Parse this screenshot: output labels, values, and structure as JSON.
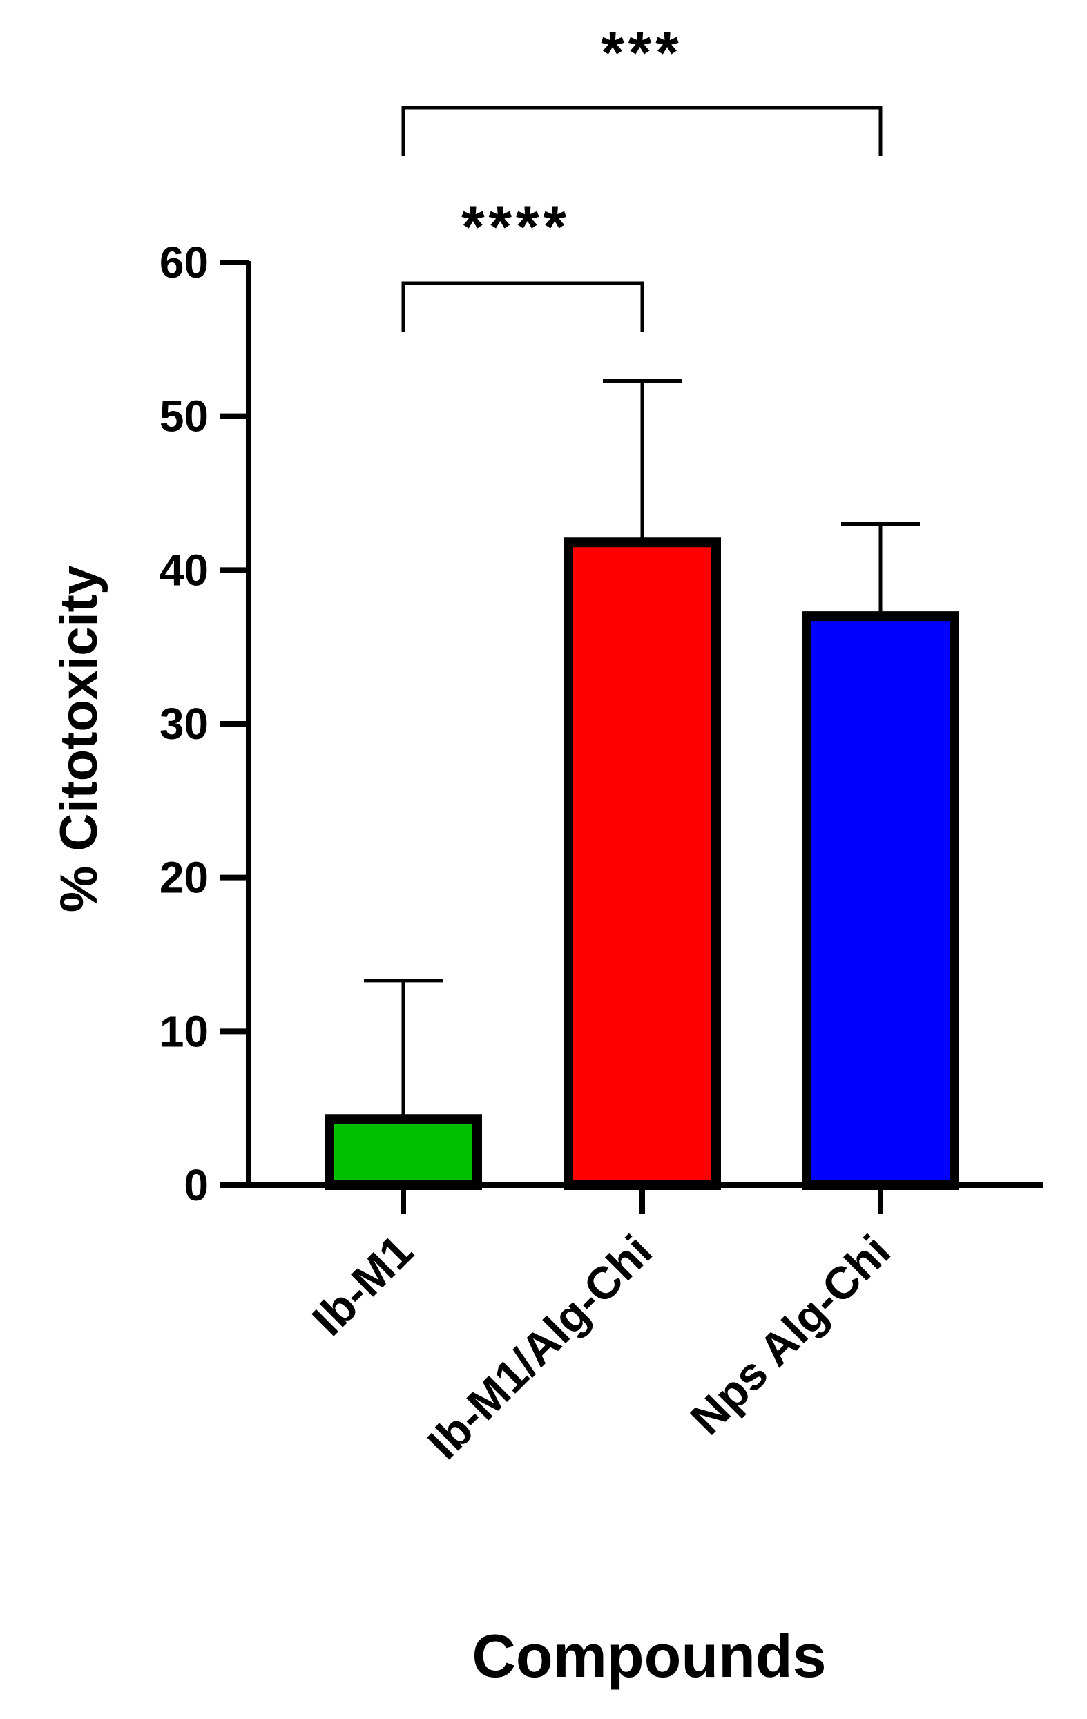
{
  "chart_data": {
    "type": "bar",
    "title": "",
    "xlabel": "Compounds",
    "ylabel": "% Citotoxicity",
    "ylim": [
      0,
      60
    ],
    "yticks": [
      0,
      10,
      20,
      30,
      40,
      50,
      60
    ],
    "ytick_labels": [
      "0",
      "10",
      "20",
      "30",
      "40",
      "50",
      "60"
    ],
    "categories": [
      "Ib-M1",
      "Ib-M1/Alg-Chi",
      "Nps Alg-Chi"
    ],
    "values": [
      4.3,
      41.8,
      37.0
    ],
    "error_upper": [
      13.3,
      52.3,
      43.0
    ],
    "colors": [
      "#00c000",
      "#ff0000",
      "#0000ff"
    ],
    "grid": false,
    "legend": "none",
    "significance": [
      {
        "from": 0,
        "to": 1,
        "label": "****",
        "level": 1
      },
      {
        "from": 0,
        "to": 2,
        "label": "***",
        "level": 2
      }
    ]
  }
}
